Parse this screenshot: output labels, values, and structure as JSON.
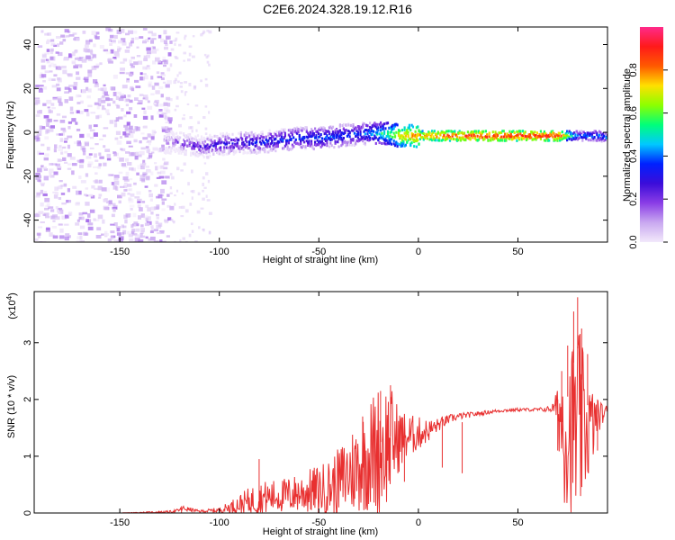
{
  "figure": {
    "title": "C2E6.2024.328.19.12.R16"
  },
  "chart_data": [
    {
      "type": "heatmap",
      "title": "C2E6.2024.328.19.12.R16",
      "xlabel": "Height of straight line (km)",
      "ylabel": "Frequency (Hz)",
      "xlim": [
        -193,
        95
      ],
      "ylim": [
        -50,
        48
      ],
      "xticks": [
        -150,
        -100,
        -50,
        0,
        50
      ],
      "yticks": [
        -40,
        -20,
        0,
        20,
        40
      ],
      "colorbar": {
        "label": "Normalized spectral amplitude",
        "range": [
          0,
          1
        ],
        "ticks": [
          0.0,
          0.2,
          0.4,
          0.6,
          0.8
        ],
        "tick_labels": [
          "0.0",
          "0.2",
          "0.4",
          "0.6",
          "0.8"
        ],
        "colormap": [
          "#f2e9fb",
          "#c9a8f0",
          "#8a3de6",
          "#3b0dd9",
          "#0020ff",
          "#00c8ff",
          "#00ff7a",
          "#8cff00",
          "#ffe000",
          "#ff5a00",
          "#ff1a1a",
          "#ff2a8a"
        ]
      },
      "ridge": {
        "x": [
          -128,
          -120,
          -110,
          -100,
          -90,
          -80,
          -70,
          -60,
          -50,
          -40,
          -30,
          -20,
          -15,
          -10,
          -5,
          0,
          10,
          20,
          30,
          40,
          50,
          60,
          70,
          80,
          90,
          95
        ],
        "frequency": [
          -4,
          -4,
          -6,
          -5,
          -4,
          -4,
          -3,
          -2,
          -2,
          -1,
          0,
          0,
          0,
          -1,
          -1,
          -1,
          -1,
          -1,
          -1,
          -1,
          -1,
          -1,
          -1,
          -1,
          -1,
          -2
        ],
        "amplitude": [
          0.15,
          0.2,
          0.25,
          0.3,
          0.32,
          0.34,
          0.36,
          0.38,
          0.4,
          0.38,
          0.36,
          0.5,
          0.6,
          0.7,
          0.75,
          0.8,
          0.85,
          0.88,
          0.9,
          0.9,
          0.9,
          0.9,
          0.88,
          0.4,
          0.45,
          0.4
        ]
      },
      "noise_region": {
        "x": [
          -193,
          -125
        ],
        "frequency": [
          -50,
          48
        ],
        "amplitude": [
          0.0,
          0.15
        ]
      }
    },
    {
      "type": "line",
      "xlabel": "Height of straight line (km)",
      "ylabel": "SNR (10 * v/v)",
      "ylabel_multiplier": "(x10",
      "ylabel_multiplier_exponent": "4",
      "ylabel_multiplier_close": ")",
      "xlim": [
        -193,
        95
      ],
      "ylim": [
        0,
        3.9
      ],
      "xticks": [
        -150,
        -100,
        -50,
        0,
        50
      ],
      "yticks": [
        0,
        1,
        2,
        3
      ],
      "series": [
        {
          "color": "#e83030",
          "x": [
            -193,
            -150,
            -125,
            -120,
            -118,
            -110,
            -100,
            -95,
            -90,
            -85,
            -80,
            -75,
            -70,
            -65,
            -60,
            -55,
            -50,
            -45,
            -40,
            -35,
            -30,
            -25,
            -20,
            -15,
            -10,
            -5,
            0,
            5,
            10,
            15,
            20,
            30,
            40,
            50,
            60,
            65,
            68,
            70,
            72,
            75,
            78,
            80,
            82,
            85,
            88,
            90,
            95
          ],
          "y": [
            0.0,
            0.0,
            0.02,
            0.05,
            0.08,
            0.03,
            0.05,
            0.1,
            0.15,
            0.2,
            0.25,
            0.28,
            0.3,
            0.32,
            0.35,
            0.38,
            0.4,
            0.45,
            0.55,
            0.7,
            0.85,
            1.0,
            1.1,
            1.25,
            1.3,
            1.35,
            1.4,
            1.45,
            1.55,
            1.65,
            1.7,
            1.75,
            1.8,
            1.82,
            1.82,
            1.83,
            1.85,
            1.85,
            1.6,
            1.5,
            1.5,
            1.45,
            1.5,
            1.5,
            1.55,
            1.7,
            1.8
          ],
          "spread": [
            0.0,
            0.0,
            0.02,
            0.03,
            0.05,
            0.02,
            0.05,
            0.1,
            0.18,
            0.25,
            0.3,
            0.3,
            0.3,
            0.32,
            0.35,
            0.4,
            0.45,
            0.5,
            0.6,
            0.75,
            0.85,
            1.0,
            1.2,
            1.1,
            0.6,
            0.4,
            0.3,
            0.2,
            0.12,
            0.08,
            0.06,
            0.04,
            0.03,
            0.03,
            0.03,
            0.05,
            0.1,
            0.4,
            1.3,
            1.5,
            1.6,
            2.0,
            1.5,
            1.0,
            0.6,
            0.3,
            0.1
          ],
          "peaks": [
            [
              -119,
              0.12
            ],
            [
              -80,
              0.95
            ],
            [
              -32,
              1.15
            ],
            [
              -28,
              1.7
            ],
            [
              -19,
              2.15
            ],
            [
              -14,
              2.25
            ],
            [
              -7,
              1.45
            ],
            [
              12,
              1.7
            ],
            [
              22,
              1.6
            ],
            [
              70,
              2.0
            ],
            [
              72,
              2.5
            ],
            [
              75,
              2.95
            ],
            [
              78,
              3.55
            ],
            [
              80,
              3.8
            ],
            [
              82,
              3.25
            ],
            [
              85,
              2.8
            ],
            [
              90,
              2.0
            ]
          ]
        }
      ]
    }
  ]
}
